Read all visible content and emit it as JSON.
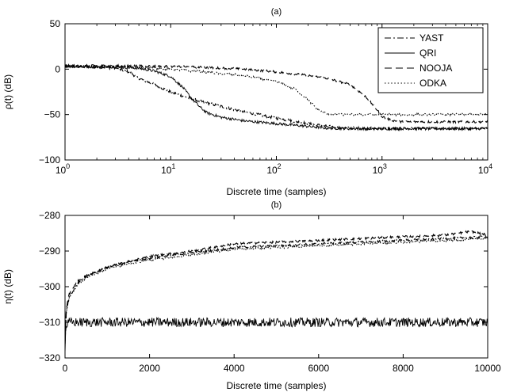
{
  "chart_data": [
    {
      "type": "line",
      "title": "(a)",
      "xlabel": "Discrete time (samples)",
      "ylabel": "ρ(t) (dB)",
      "xscale": "log",
      "xlim": [
        1,
        10000
      ],
      "ylim": [
        -100,
        50
      ],
      "xticks": [
        {
          "value": 1,
          "base": "10",
          "exp": "0"
        },
        {
          "value": 10,
          "base": "10",
          "exp": "1"
        },
        {
          "value": 100,
          "base": "10",
          "exp": "2"
        },
        {
          "value": 1000,
          "base": "10",
          "exp": "3"
        },
        {
          "value": 10000,
          "base": "10",
          "exp": "4"
        }
      ],
      "yticks": [
        {
          "value": 50,
          "label": "50"
        },
        {
          "value": 0,
          "label": "0"
        },
        {
          "value": -50,
          "label": "−50"
        },
        {
          "value": -100,
          "label": "−100"
        }
      ],
      "legend_position": "top-right",
      "grid": false,
      "series": [
        {
          "name": "YAST",
          "style": "dashdot",
          "noise": 1.5,
          "points": [
            [
              1,
              3
            ],
            [
              2,
              2.5
            ],
            [
              3,
              1
            ],
            [
              4,
              -3
            ],
            [
              5,
              -10
            ],
            [
              7,
              -17
            ],
            [
              10,
              -25
            ],
            [
              15,
              -32
            ],
            [
              20,
              -36
            ],
            [
              30,
              -41
            ],
            [
              50,
              -47
            ],
            [
              100,
              -54
            ],
            [
              200,
              -60
            ],
            [
              300,
              -63
            ],
            [
              500,
              -65
            ],
            [
              1000,
              -65.5
            ],
            [
              10000,
              -65.5
            ]
          ]
        },
        {
          "name": "QRI",
          "style": "solid",
          "noise": 1.5,
          "points": [
            [
              1,
              3
            ],
            [
              3,
              2.5
            ],
            [
              5,
              1
            ],
            [
              7,
              -2
            ],
            [
              10,
              -8
            ],
            [
              13,
              -20
            ],
            [
              16,
              -33
            ],
            [
              19,
              -42
            ],
            [
              22,
              -48
            ],
            [
              30,
              -53
            ],
            [
              50,
              -57
            ],
            [
              100,
              -60
            ],
            [
              200,
              -63
            ],
            [
              300,
              -65
            ],
            [
              500,
              -65.5
            ],
            [
              1000,
              -65.5
            ],
            [
              10000,
              -65.5
            ]
          ]
        },
        {
          "name": "NOOJA",
          "style": "dashed",
          "noise": 1.2,
          "points": [
            [
              1,
              4
            ],
            [
              5,
              3.5
            ],
            [
              10,
              3
            ],
            [
              20,
              2
            ],
            [
              50,
              0
            ],
            [
              100,
              -3
            ],
            [
              200,
              -7
            ],
            [
              300,
              -10
            ],
            [
              500,
              -17
            ],
            [
              700,
              -30
            ],
            [
              900,
              -45
            ],
            [
              1000,
              -52
            ],
            [
              1200,
              -56
            ],
            [
              1500,
              -58
            ],
            [
              10000,
              -58
            ]
          ]
        },
        {
          "name": "ODKA",
          "style": "dotted",
          "noise": 1.2,
          "points": [
            [
              1,
              3
            ],
            [
              5,
              2
            ],
            [
              10,
              0
            ],
            [
              20,
              -3
            ],
            [
              40,
              -6
            ],
            [
              70,
              -10
            ],
            [
              100,
              -14
            ],
            [
              150,
              -22
            ],
            [
              200,
              -34
            ],
            [
              250,
              -45
            ],
            [
              300,
              -49
            ],
            [
              500,
              -50
            ],
            [
              10000,
              -50
            ]
          ]
        }
      ]
    },
    {
      "type": "line",
      "title": "(b)",
      "xlabel": "Discrete time (samples)",
      "ylabel": "η(t) (dB)",
      "xscale": "linear",
      "xlim": [
        0,
        10000
      ],
      "ylim": [
        -320,
        -280
      ],
      "xticks": [
        {
          "value": 0,
          "label": "0"
        },
        {
          "value": 2000,
          "label": "2000"
        },
        {
          "value": 4000,
          "label": "4000"
        },
        {
          "value": 6000,
          "label": "6000"
        },
        {
          "value": 8000,
          "label": "8000"
        },
        {
          "value": 10000,
          "label": "10000"
        }
      ],
      "yticks": [
        {
          "value": -280,
          "label": "−280"
        },
        {
          "value": -290,
          "label": "−290"
        },
        {
          "value": -300,
          "label": "−300"
        },
        {
          "value": -310,
          "label": "−310"
        },
        {
          "value": -320,
          "label": "−320"
        }
      ],
      "grid": false,
      "series": [
        {
          "name": "YAST",
          "style": "dashdot",
          "noise": 0.3,
          "points": [
            [
              0,
              -316
            ],
            [
              30,
              -307
            ],
            [
              100,
              -303
            ],
            [
              300,
              -299
            ],
            [
              500,
              -297
            ],
            [
              1000,
              -294.5
            ],
            [
              1500,
              -293
            ],
            [
              2000,
              -292
            ],
            [
              3000,
              -290.5
            ],
            [
              4000,
              -289
            ],
            [
              5000,
              -288.5
            ],
            [
              6000,
              -288
            ],
            [
              7000,
              -287.5
            ],
            [
              8000,
              -287
            ],
            [
              9000,
              -286.5
            ],
            [
              10000,
              -286
            ]
          ]
        },
        {
          "name": "QRI",
          "style": "solid",
          "noise": 1.3,
          "points": [
            [
              0,
              -318
            ],
            [
              20,
              -311
            ],
            [
              100,
              -310
            ],
            [
              10000,
              -310
            ]
          ]
        },
        {
          "name": "NOOJA",
          "style": "dashed",
          "noise": 0.3,
          "points": [
            [
              0,
              -315
            ],
            [
              30,
              -306
            ],
            [
              100,
              -302
            ],
            [
              300,
              -298.5
            ],
            [
              500,
              -297
            ],
            [
              1000,
              -294.5
            ],
            [
              1500,
              -293
            ],
            [
              2000,
              -291.5
            ],
            [
              3000,
              -290
            ],
            [
              4000,
              -288
            ],
            [
              5000,
              -287.5
            ],
            [
              6000,
              -287
            ],
            [
              7000,
              -286.5
            ],
            [
              8000,
              -286
            ],
            [
              9000,
              -285.5
            ],
            [
              9600,
              -284.5
            ],
            [
              10000,
              -285.5
            ]
          ]
        },
        {
          "name": "ODKA",
          "style": "dotted",
          "noise": 0.3,
          "points": [
            [
              0,
              -316
            ],
            [
              30,
              -307
            ],
            [
              100,
              -303
            ],
            [
              300,
              -299.5
            ],
            [
              500,
              -297.5
            ],
            [
              1000,
              -295
            ],
            [
              1500,
              -293.5
            ],
            [
              2000,
              -292.5
            ],
            [
              3000,
              -291
            ],
            [
              4000,
              -289.5
            ],
            [
              5000,
              -289
            ],
            [
              6000,
              -288.5
            ],
            [
              7000,
              -288
            ],
            [
              8000,
              -287.5
            ],
            [
              9000,
              -287
            ],
            [
              10000,
              -286.5
            ]
          ]
        }
      ]
    }
  ]
}
